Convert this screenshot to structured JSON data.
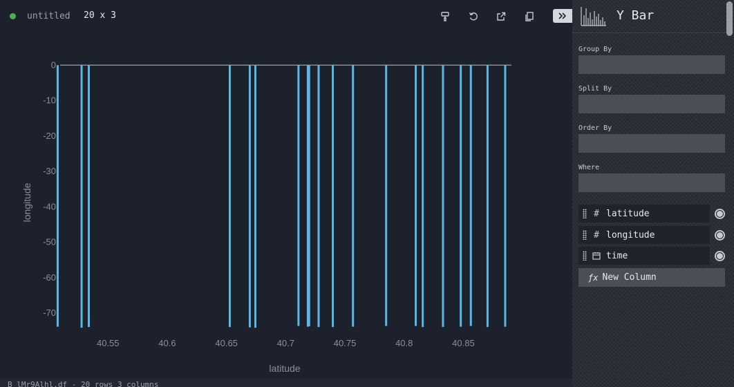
{
  "header": {
    "title": "untitled",
    "dimensions": "20 x 3",
    "status_color": "#4caf50",
    "tools": [
      "format-painter-icon",
      "reset-icon",
      "export-icon",
      "copy-icon"
    ]
  },
  "footer": {
    "text": "B_lMr9Alhl.df - 20 rows 3 columns"
  },
  "plugin": {
    "icon": "y-bar-chart-icon",
    "name": "Y Bar"
  },
  "config": {
    "group_by": "Group By",
    "split_by": "Split By",
    "order_by": "Order By",
    "where": "Where"
  },
  "columns": [
    {
      "name": "latitude",
      "type_icon": "#"
    },
    {
      "name": "longitude",
      "type_icon": "#"
    },
    {
      "name": "time",
      "type_icon": "calendar-icon"
    }
  ],
  "new_column": {
    "fx": "ƒx",
    "label": "New Column"
  },
  "colors": {
    "bar": "#5ab8e8",
    "axis_text": "#8a8f99",
    "background": "#1c212b"
  },
  "chart_data": {
    "type": "bar",
    "orientation": "vertical",
    "xlabel": "latitude",
    "ylabel": "longitude",
    "x_ticks": [
      40.55,
      40.6,
      40.65,
      40.7,
      40.75,
      40.8,
      40.85
    ],
    "y_ticks": [
      0,
      -10,
      -20,
      -30,
      -40,
      -50,
      -60,
      -70
    ],
    "xlim": [
      40.5055,
      40.8935
    ],
    "ylim": [
      -76,
      2
    ],
    "x": [
      40.5075,
      40.5277,
      40.5338,
      40.6528,
      40.6697,
      40.6744,
      40.7108,
      40.7187,
      40.7198,
      40.7278,
      40.7398,
      40.7568,
      40.7848,
      40.8098,
      40.8157,
      40.8328,
      40.8478,
      40.8563,
      40.8704,
      40.8853
    ],
    "y": [
      -73.8,
      -74.1,
      -73.9,
      -73.9,
      -74.0,
      -74.1,
      -73.6,
      -73.8,
      -73.7,
      -73.9,
      -73.9,
      -73.8,
      -73.6,
      -73.6,
      -73.9,
      -73.9,
      -73.8,
      -73.6,
      -73.9,
      -73.8
    ]
  }
}
